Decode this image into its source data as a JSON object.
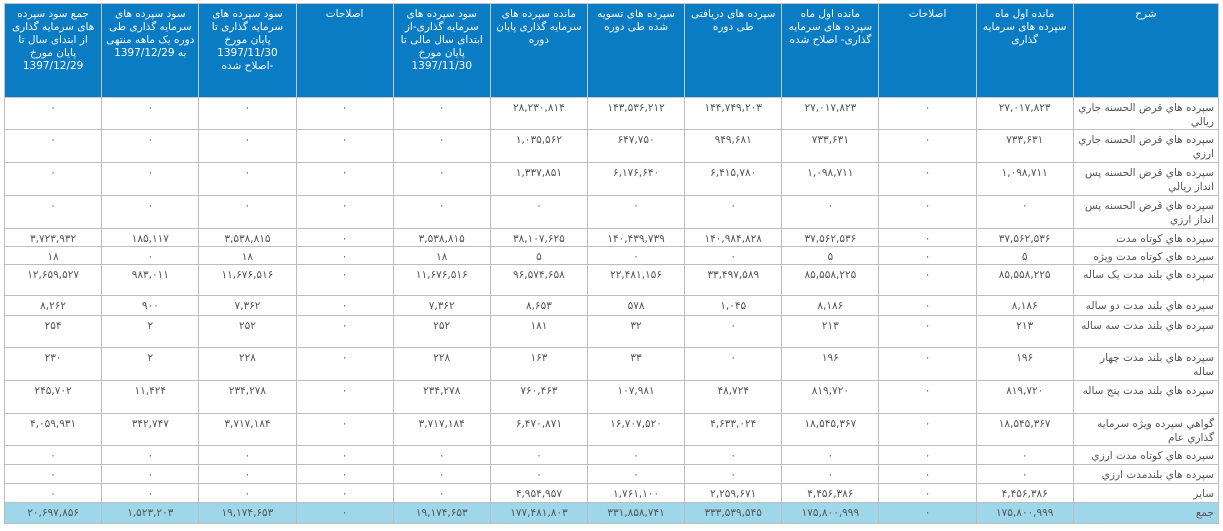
{
  "headers": [
    "شرح",
    "مانده اول ماه سپرده های سرمایه گذاری",
    "اصلاحات",
    "مانده اول ماه سپرده های سرمایه گذاری- اصلاح شده",
    "سپرده های دریافتی طی دوره",
    "سپرده های تسویه شده طی دوره",
    "مانده سپرده های سرمایه گذاری پایان دوره",
    "سود سپرده های سرمایه گذاری-از ابتدای سال مالی تا پایان مورخ 1397/11/30",
    "اصلاحات",
    "سود سپرده های سرمایه گذاری تا پایان مورخ 1397/11/30 -اصلاح شده",
    "سود سپرده های سرمایه گذاری طی دوره یک ماهه منتهی به 1397/12/29",
    "جمع سود سپرده های سرمایه گذاری از ابتدای سال تا پایان مورخ 1397/12/29"
  ],
  "rows": [
    [
      "سپرده هاي قرض الحسنه جاري ريالي",
      "۲۷,۰۱۷,۸۲۳",
      "۰",
      "۲۷,۰۱۷,۸۲۳",
      "۱۴۴,۷۴۹,۲۰۳",
      "۱۴۳,۵۳۶,۲۱۲",
      "۲۸,۲۳۰,۸۱۴",
      "۰",
      "۰",
      "۰",
      "۰",
      "۰"
    ],
    [
      "سپرده هاي قرض الحسنه جاري ارزي",
      "۷۳۳,۶۳۱",
      "۰",
      "۷۳۳,۶۳۱",
      "۹۴۹,۶۸۱",
      "۶۴۷,۷۵۰",
      "۱,۰۳۵,۵۶۲",
      "۰",
      "۰",
      "۰",
      "۰",
      "۰"
    ],
    [
      "سپرده هاي قرض الحسنه پس انداز ريالي",
      "۱,۰۹۸,۷۱۱",
      "۰",
      "۱,۰۹۸,۷۱۱",
      "۶,۴۱۵,۷۸۰",
      "۶,۱۷۶,۶۴۰",
      "۱,۳۳۷,۸۵۱",
      "۰",
      "۰",
      "۰",
      "۰",
      "۰"
    ],
    [
      "سپرده هاي قرض الحسنه پس انداز ارزي",
      "۰",
      "۰",
      "۰",
      "۰",
      "۰",
      "۰",
      "۰",
      "۰",
      "۰",
      "۰",
      "۰"
    ],
    [
      "سپرده هاي كوتاه مدت",
      "۳۷,۵۶۲,۵۳۶",
      "۰",
      "۳۷,۵۶۲,۵۳۶",
      "۱۴۰,۹۸۴,۸۲۸",
      "۱۴۰,۴۳۹,۷۳۹",
      "۳۸,۱۰۷,۶۲۵",
      "۳,۵۳۸,۸۱۵",
      "۰",
      "۳,۵۳۸,۸۱۵",
      "۱۸۵,۱۱۷",
      "۳,۷۲۳,۹۳۲"
    ],
    [
      "سپرده هاي كوتاه مدت ويژه",
      "۵",
      "۰",
      "۵",
      "۰",
      "۰",
      "۵",
      "۱۸",
      "۰",
      "۱۸",
      "۰",
      "۱۸"
    ],
    [
      "سپرده هاي بلند مدت يک ساله",
      "۸۵,۵۵۸,۲۲۵",
      "۰",
      "۸۵,۵۵۸,۲۲۵",
      "۳۳,۴۹۷,۵۸۹",
      "۲۲,۴۸۱,۱۵۶",
      "۹۶,۵۷۴,۶۵۸",
      "۱۱,۶۷۶,۵۱۶",
      "۰",
      "۱۱,۶۷۶,۵۱۶",
      "۹۸۳,۰۱۱",
      "۱۲,۶۵۹,۵۲۷"
    ],
    [
      "سپرده هاي بلند مدت دو ساله",
      "۸,۱۸۶",
      "۰",
      "۸,۱۸۶",
      "۱,۰۴۵",
      "۵۷۸",
      "۸,۶۵۳",
      "۷,۳۶۲",
      "۰",
      "۷,۳۶۲",
      "۹۰۰",
      "۸,۲۶۲"
    ],
    [
      "سپرده هاي بلند مدت سه ساله",
      "۲۱۳",
      "۰",
      "۲۱۳",
      "۰",
      "۳۲",
      "۱۸۱",
      "۲۵۲",
      "۰",
      "۲۵۲",
      "۲",
      "۲۵۴"
    ],
    [
      "سپرده هاي بلند مدت چهار ساله",
      "۱۹۶",
      "۰",
      "۱۹۶",
      "۰",
      "۳۳",
      "۱۶۳",
      "۲۲۸",
      "۰",
      "۲۲۸",
      "۲",
      "۲۳۰"
    ],
    [
      "سپرده هاي بلند مدت پنج ساله",
      "۸۱۹,۷۲۰",
      "۰",
      "۸۱۹,۷۲۰",
      "۴۸,۷۲۴",
      "۱۰۷,۹۸۱",
      "۷۶۰,۴۶۳",
      "۲۳۴,۲۷۸",
      "۰",
      "۲۳۴,۲۷۸",
      "۱۱,۴۲۴",
      "۲۴۵,۷۰۲"
    ],
    [
      "گواهي سپرده ويژه سرمايه گذاري عام",
      "۱۸,۵۴۵,۳۶۷",
      "۰",
      "۱۸,۵۴۵,۳۶۷",
      "۴,۶۳۳,۰۲۴",
      "۱۶,۷۰۷,۵۲۰",
      "۶,۴۷۰,۸۷۱",
      "۳,۷۱۷,۱۸۴",
      "۰",
      "۳,۷۱۷,۱۸۴",
      "۳۴۲,۷۴۷",
      "۴,۰۵۹,۹۳۱"
    ],
    [
      "سپرده هاي كوتاه مدت ارزي",
      "۰",
      "۰",
      "۰",
      "۰",
      "۰",
      "۰",
      "۰",
      "۰",
      "۰",
      "۰",
      "۰"
    ],
    [
      "سپرده هاي بلندمدت ارزي",
      "۰",
      "۰",
      "۰",
      "۰",
      "۰",
      "۰",
      "۰",
      "۰",
      "۰",
      "۰",
      "۰"
    ],
    [
      "ساير",
      "۴,۴۵۶,۳۸۶",
      "۰",
      "۴,۴۵۶,۳۸۶",
      "۲,۲۵۹,۶۷۱",
      "۱,۷۶۱,۱۰۰",
      "۴,۹۵۴,۹۵۷",
      "۰",
      "۰",
      "۰",
      "۰",
      "۰"
    ]
  ],
  "total": [
    "جمع",
    "۱۷۵,۸۰۰,۹۹۹",
    "۰",
    "۱۷۵,۸۰۰,۹۹۹",
    "۳۳۳,۵۳۹,۵۴۵",
    "۳۳۱,۸۵۸,۷۴۱",
    "۱۷۷,۴۸۱,۸۰۳",
    "۱۹,۱۷۴,۶۵۳",
    "۰",
    "۱۹,۱۷۴,۶۵۳",
    "۱,۵۲۳,۲۰۳",
    "۲۰,۶۹۷,۸۵۶"
  ]
}
